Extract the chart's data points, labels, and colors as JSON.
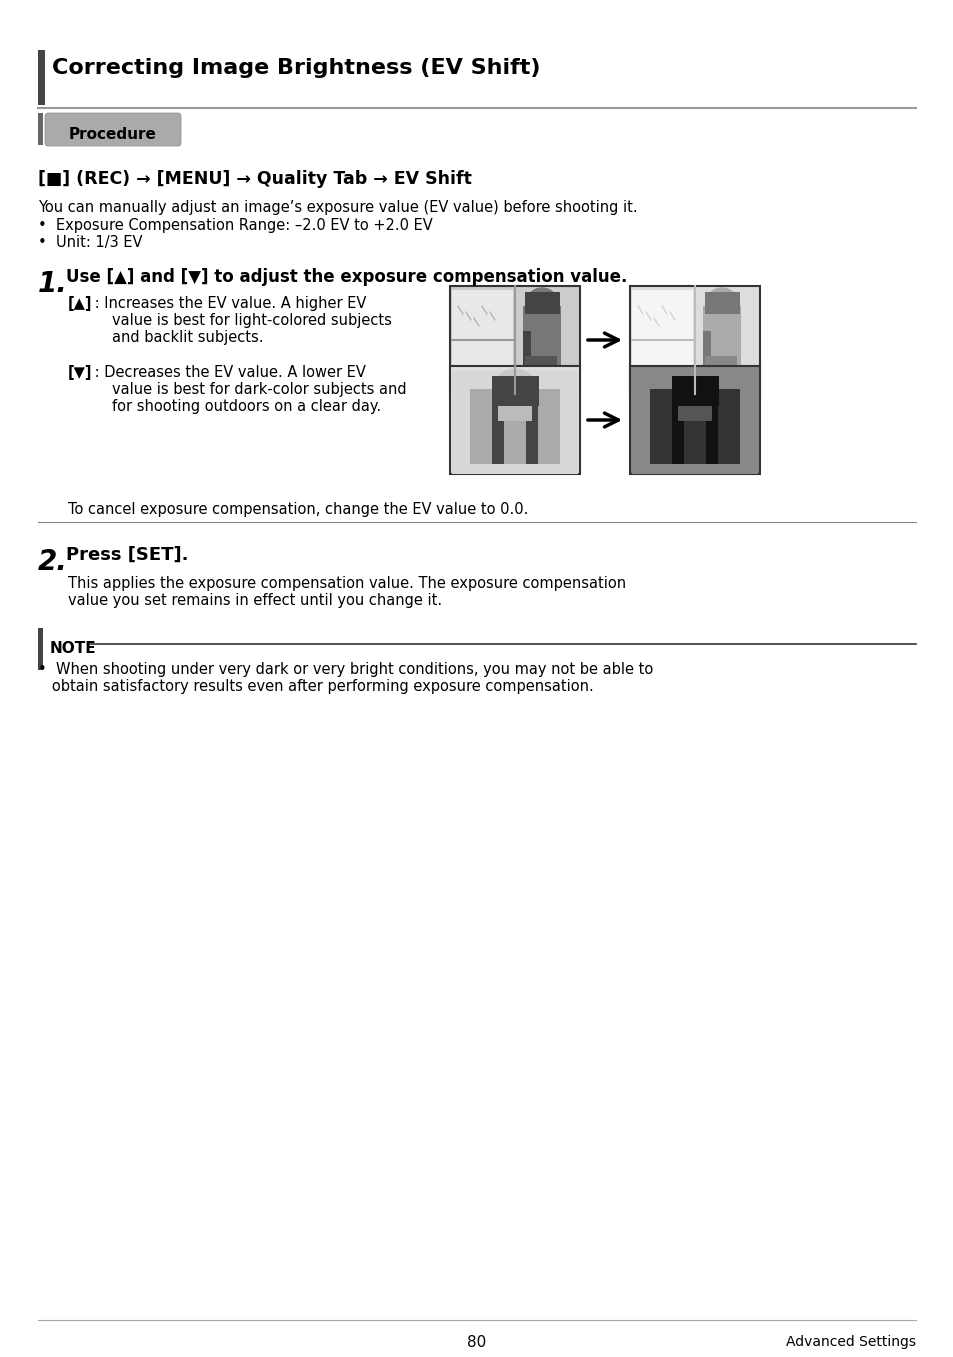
{
  "title": "Correcting Image Brightness (EV Shift)",
  "procedure_label": "Procedure",
  "nav_line_bold": "[■] (REC) → [MENU] → Quality Tab → EV Shift",
  "intro_line1": "You can manually adjust an image’s exposure value (EV value) before shooting it.",
  "bullet1": "•  Exposure Compensation Range: –2.0 EV to +2.0 EV",
  "bullet2": "•  Unit: 1/3 EV",
  "step1_num": "1.",
  "step1_text": "Use [▲] and [▼] to adjust the exposure compensation value.",
  "up_label": "[▲]",
  "up_colon": " : ",
  "up_text1": "Increases the EV value. A higher EV",
  "up_text2": "value is best for light-colored subjects",
  "up_text3": "and backlit subjects.",
  "down_label": "[▼]",
  "down_colon": " : ",
  "down_text1": "Decreases the EV value. A lower EV",
  "down_text2": "value is best for dark-color subjects and",
  "down_text3": "for shooting outdoors on a clear day.",
  "cancel_text": "To cancel exposure compensation, change the EV value to 0.0.",
  "step2_num": "2.",
  "step2_text": "Press [SET].",
  "step2_body1": "This applies the exposure compensation value. The exposure compensation",
  "step2_body2": "value you set remains in effect until you change it.",
  "note_label": "NOTE",
  "note_text1": "•  When shooting under very dark or very bright conditions, you may not be able to",
  "note_text2": "   obtain satisfactory results even after performing exposure compensation.",
  "footer_page": "80",
  "footer_right": "Advanced Settings",
  "bg_color": "#ffffff",
  "text_color": "#000000",
  "gray_line": "#aaaaaa",
  "dark_bar": "#444444",
  "proc_bg": "#aaaaaa",
  "proc_bar": "#666666"
}
